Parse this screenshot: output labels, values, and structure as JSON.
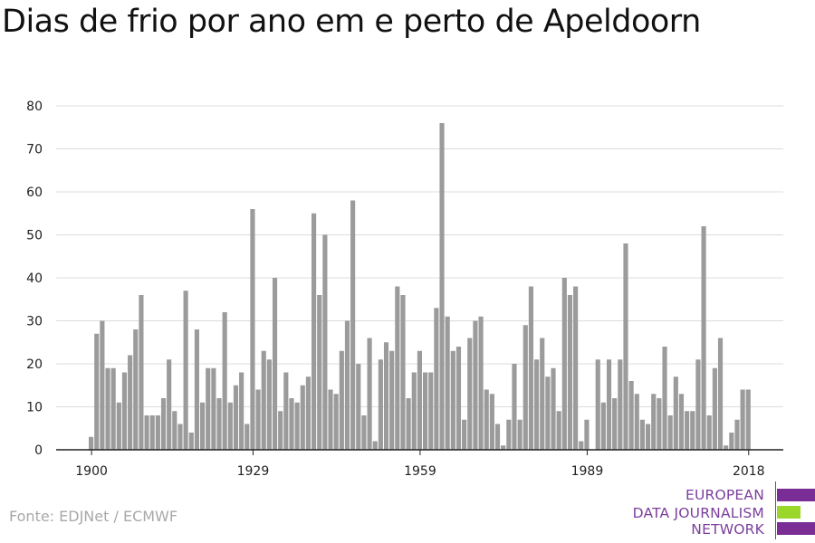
{
  "title": "Dias de frio por ano em e perto de Apeldoorn",
  "source": "Fonte: EDJNet / ECMWF",
  "logo": {
    "lines": [
      "EUROPEAN",
      "DATA JOURNALISM",
      "NETWORK"
    ],
    "colors": {
      "purple": "#7b2d96",
      "green": "#9bd72b"
    }
  },
  "colors": {
    "bar": "#9b9b9b",
    "grid": "#dcdcdc",
    "axis": "#222222",
    "text": "#222222"
  },
  "chart_data": {
    "type": "bar",
    "title": "Dias de frio por ano em e perto de Apeldoorn",
    "xlabel": "",
    "ylabel": "",
    "ylim": [
      0,
      80
    ],
    "yticks": [
      0,
      10,
      20,
      30,
      40,
      50,
      60,
      70,
      80
    ],
    "xticks": [
      1900,
      1929,
      1959,
      1989,
      2018
    ],
    "grid": true,
    "x_start": 1900,
    "x_end": 2018,
    "values": [
      3,
      27,
      30,
      19,
      19,
      11,
      18,
      22,
      28,
      36,
      8,
      8,
      8,
      12,
      21,
      9,
      6,
      37,
      4,
      28,
      11,
      19,
      19,
      12,
      32,
      11,
      15,
      18,
      6,
      56,
      14,
      23,
      21,
      40,
      9,
      18,
      12,
      11,
      15,
      17,
      55,
      36,
      50,
      14,
      13,
      23,
      30,
      58,
      20,
      8,
      26,
      2,
      21,
      25,
      23,
      38,
      36,
      12,
      18,
      23,
      18,
      18,
      33,
      76,
      31,
      23,
      24,
      7,
      26,
      30,
      31,
      14,
      13,
      6,
      1,
      7,
      20,
      7,
      29,
      38,
      21,
      26,
      17,
      19,
      9,
      40,
      36,
      38,
      2,
      7,
      0,
      21,
      11,
      21,
      12,
      21,
      48,
      16,
      13,
      7,
      6,
      13,
      12,
      24,
      8,
      17,
      13,
      9,
      9,
      21,
      52,
      8,
      19,
      26,
      1,
      4,
      7,
      14,
      14
    ]
  }
}
